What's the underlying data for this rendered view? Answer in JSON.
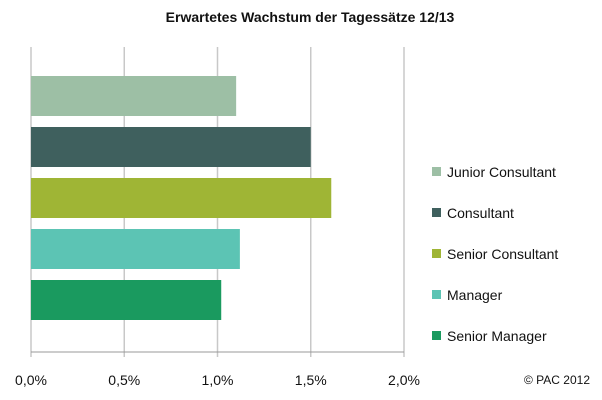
{
  "chart_data": {
    "type": "bar",
    "orientation": "horizontal",
    "title": "Erwartetes Wachstum der Tagessätze 12/13",
    "categories": [
      "Junior Consultant",
      "Consultant",
      "Senior Consultant",
      "Manager",
      "Senior Manager"
    ],
    "values": [
      1.1,
      1.5,
      1.61,
      1.12,
      1.02
    ],
    "colors": [
      "#9dbfa5",
      "#3f605e",
      "#9fb535",
      "#5cc4b4",
      "#1a9a5f"
    ],
    "xlabel": "",
    "ylabel": "",
    "xlim": [
      0,
      2.0
    ],
    "xticks": [
      0,
      0.5,
      1.0,
      1.5,
      2.0
    ],
    "xtick_labels": [
      "0,0%",
      "0,5%",
      "1,0%",
      "1,5%",
      "2,0%"
    ],
    "grid": true,
    "legend_position": "right",
    "source": "© PAC 2012"
  }
}
